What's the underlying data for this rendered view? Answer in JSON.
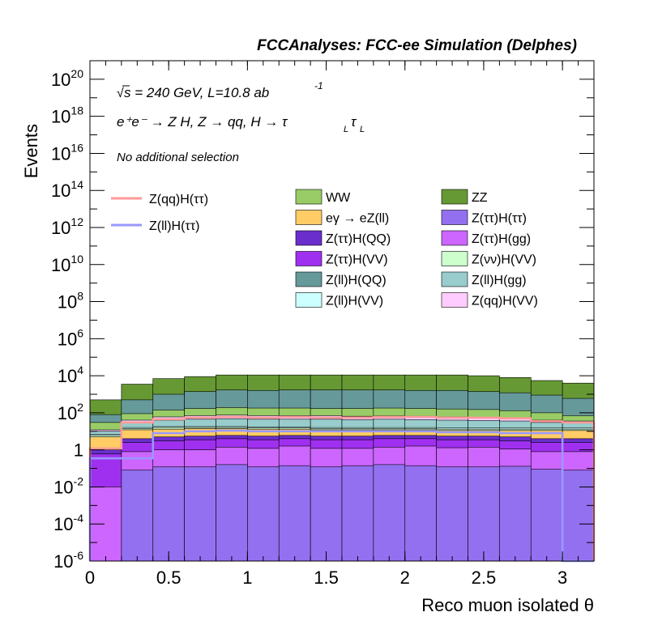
{
  "chart_data": {
    "type": "histogram-stacked",
    "title": "FCCAnalyses: FCC-ee Simulation (Delphes)",
    "xlabel": "Reco muon isolated θ",
    "ylabel": "Events",
    "log_y": true,
    "xlim": [
      0,
      3.2
    ],
    "ylim": [
      1e-06,
      1e+21
    ],
    "x_ticks": [
      "0",
      "0.5",
      "1",
      "1.5",
      "2",
      "2.5",
      "3"
    ],
    "y_ticks": [
      {
        "base": "10",
        "exp": "-6",
        "value": 1e-06
      },
      {
        "base": "10",
        "exp": "-4",
        "value": 0.0001
      },
      {
        "base": "10",
        "exp": "-2",
        "value": 0.01
      },
      {
        "base": "1",
        "exp": "",
        "value": 1
      },
      {
        "base": "10",
        "exp": "2",
        "value": 100.0
      },
      {
        "base": "10",
        "exp": "4",
        "value": 10000.0
      },
      {
        "base": "10",
        "exp": "6",
        "value": 1000000.0
      },
      {
        "base": "10",
        "exp": "8",
        "value": 100000000.0
      },
      {
        "base": "10",
        "exp": "10",
        "value": 10000000000.0
      },
      {
        "base": "10",
        "exp": "12",
        "value": 1000000000000.0
      },
      {
        "base": "10",
        "exp": "14",
        "value": 100000000000000.0
      },
      {
        "base": "10",
        "exp": "16",
        "value": 1e+16
      },
      {
        "base": "10",
        "exp": "18",
        "value": 1e+18
      },
      {
        "base": "10",
        "exp": "20",
        "value": 1e+20
      }
    ],
    "bin_edges": [
      0,
      0.2,
      0.4,
      0.6,
      0.8,
      1.0,
      1.2,
      1.4,
      1.6,
      1.8,
      2.0,
      2.2,
      2.4,
      2.6,
      2.8,
      3.0,
      3.2
    ],
    "stack_cumulative": [
      {
        "name": "Z(ττ)H(ττ)",
        "color": "#9370f0",
        "values": [
          1e-06,
          0.08,
          0.12,
          0.12,
          0.16,
          0.12,
          0.14,
          0.12,
          0.14,
          0.16,
          0.14,
          0.12,
          0.12,
          0.13,
          0.09,
          0.08,
          0
        ]
      },
      {
        "name": "Z(ττ)H(gg)",
        "color": "#cc66ff",
        "values": [
          0.01,
          0.8,
          1.0,
          1.0,
          1.4,
          1.2,
          1.6,
          1.2,
          1.2,
          1.4,
          1.6,
          1.3,
          1.4,
          1.1,
          0.8,
          0.8,
          0
        ]
      },
      {
        "name": "Z(ττ)H(VV)",
        "color": "#a030f0",
        "values": [
          0.6,
          2.5,
          3,
          3.5,
          4,
          3.5,
          4,
          3.5,
          3.5,
          4,
          4,
          3.5,
          3.5,
          3.0,
          2.5,
          2.5,
          0
        ]
      },
      {
        "name": "Z(ττ)H(QQ)",
        "color": "#6a2ecc",
        "values": [
          1.0,
          4,
          5,
          5.5,
          6,
          5.5,
          6,
          5.5,
          5.5,
          6,
          6,
          5.5,
          5.5,
          5.0,
          4,
          4,
          0
        ]
      },
      {
        "name": "eγ → eZ(ll)",
        "color": "#ffcc66",
        "values": [
          5.0,
          12,
          13,
          14,
          14,
          13,
          13,
          12,
          12,
          12,
          12,
          11,
          11,
          11,
          11,
          11,
          0
        ]
      },
      {
        "name": "Z(νν)H(VV)",
        "color": "#ccffcc",
        "values": [
          6.0,
          14,
          16,
          16,
          16,
          15,
          15,
          14,
          14,
          14,
          14,
          13,
          13,
          13,
          13,
          13,
          0
        ]
      },
      {
        "name": "Z(ll)H(VV)",
        "color": "#ccffff",
        "values": [
          7.0,
          16,
          18,
          18,
          18,
          17,
          17,
          16,
          16,
          16,
          16,
          15,
          15,
          15,
          15,
          15,
          0
        ]
      },
      {
        "name": "Z(ll)H(gg)",
        "color": "#99cccc",
        "values": [
          10.0,
          30,
          40,
          45,
          48,
          45,
          45,
          45,
          42,
          45,
          42,
          40,
          38,
          36,
          30,
          28,
          0
        ]
      },
      {
        "name": "Z(qq)H(VV)",
        "color": "#ffccff",
        "values": [
          12.0,
          40,
          60,
          70,
          75,
          70,
          70,
          70,
          65,
          68,
          65,
          60,
          55,
          50,
          40,
          36,
          0
        ]
      },
      {
        "name": "WW",
        "color": "#99cc66",
        "values": [
          30.0,
          90,
          140,
          170,
          190,
          180,
          180,
          170,
          170,
          180,
          170,
          160,
          150,
          130,
          100,
          70,
          0
        ]
      },
      {
        "name": "Z(ll)H(QQ)",
        "color": "#669999",
        "values": [
          80.0,
          500,
          1000,
          1400,
          1700,
          1600,
          1700,
          1700,
          1700,
          1700,
          1600,
          1600,
          1400,
          1200,
          900,
          600,
          0
        ]
      },
      {
        "name": "ZZ",
        "color": "#669933",
        "values": [
          500.0,
          3500,
          7000,
          9000,
          11000,
          11000,
          11000,
          11000,
          11000,
          11000,
          11000,
          11000,
          10000,
          8000,
          5500,
          4000,
          0
        ]
      }
    ],
    "lines": [
      {
        "name": "Z(qq)H(ττ)",
        "color": "#ff9999",
        "values": [
          1.2,
          30,
          45,
          55,
          60,
          55,
          60,
          55,
          55,
          60,
          60,
          55,
          55,
          50,
          35,
          30,
          0
        ]
      },
      {
        "name": "Z(ll)H(ττ)",
        "color": "#9999ff",
        "values": [
          0.35,
          0.35,
          8,
          10,
          11,
          10,
          10,
          10,
          10,
          10,
          10,
          9,
          9,
          8,
          8,
          1e-06,
          0
        ]
      }
    ],
    "legend": [
      {
        "name": "WW",
        "color": "#99cc66",
        "style": "box"
      },
      {
        "name": "ZZ",
        "color": "#669933",
        "style": "box"
      },
      {
        "name": "eγ → eZ(ll)",
        "color": "#ffcc66",
        "style": "box"
      },
      {
        "name": "Z(ττ)H(ττ)",
        "color": "#9370f0",
        "style": "box"
      },
      {
        "name": "Z(ττ)H(QQ)",
        "color": "#6a2ecc",
        "style": "box"
      },
      {
        "name": "Z(ττ)H(gg)",
        "color": "#cc66ff",
        "style": "box"
      },
      {
        "name": "Z(ττ)H(VV)",
        "color": "#a030f0",
        "style": "box"
      },
      {
        "name": "Z(νν)H(VV)",
        "color": "#ccffcc",
        "style": "box"
      },
      {
        "name": "Z(ll)H(QQ)",
        "color": "#669999",
        "style": "box"
      },
      {
        "name": "Z(ll)H(gg)",
        "color": "#99cccc",
        "style": "box"
      },
      {
        "name": "Z(ll)H(VV)",
        "color": "#ccffff",
        "style": "box"
      },
      {
        "name": "Z(qq)H(VV)",
        "color": "#ffccff",
        "style": "box"
      }
    ],
    "line_legend": [
      {
        "name": "Z(qq)H(ττ)",
        "color": "#ff9999"
      },
      {
        "name": "Z(ll)H(ττ)",
        "color": "#9999ff"
      }
    ],
    "annotations": {
      "sqrt": "√",
      "energy": "s = 240 GeV, L=10.8 ab",
      "energy_exp": "-1",
      "process": "e⁺e⁻ → Z H, Z → qq, H → τ",
      "process_sub1": "L",
      "process_tau2": "τ",
      "process_sub2": "L",
      "selection": "No additional selection"
    }
  }
}
